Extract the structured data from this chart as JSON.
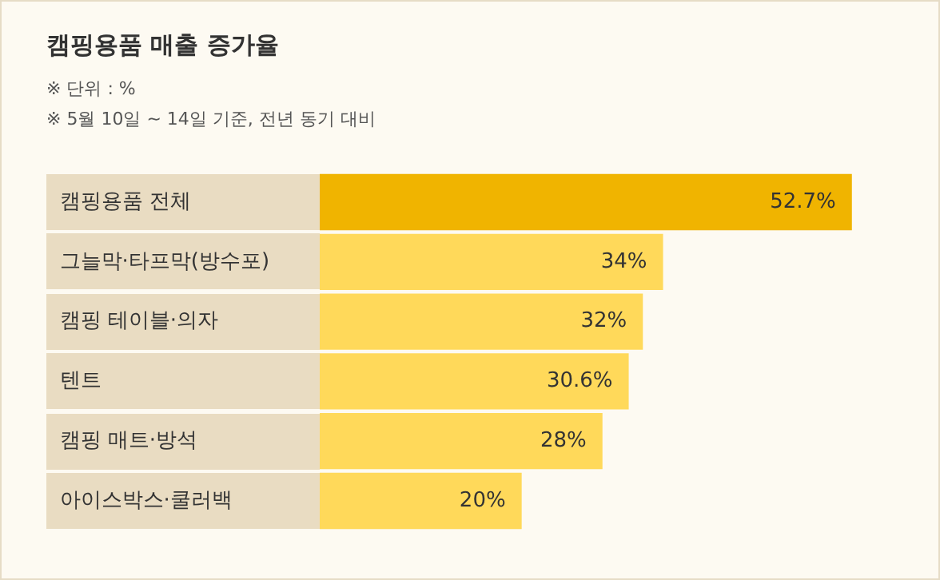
{
  "chart_data": {
    "type": "bar",
    "orientation": "horizontal",
    "title": "캠핑용품 매출 증가율",
    "annotations": [
      "※ 단위 : %",
      "※ 5월 10일 ~ 14일 기준, 전년 동기 대비"
    ],
    "categories": [
      "캠핑용품 전체",
      "그늘막·타프막(방수포)",
      "캠핑 테이블·의자",
      "텐트",
      "캠핑 매트·방석",
      "아이스박스·쿨러백"
    ],
    "values": [
      52.7,
      34,
      32,
      30.6,
      28,
      20
    ],
    "value_labels": [
      "52.7%",
      "34%",
      "32%",
      "30.6%",
      "28%",
      "20%"
    ],
    "colors": [
      "#f0b400",
      "#ffd95a",
      "#ffd95a",
      "#ffd95a",
      "#ffd95a",
      "#ffd95a"
    ],
    "grid": false,
    "legend": false
  }
}
